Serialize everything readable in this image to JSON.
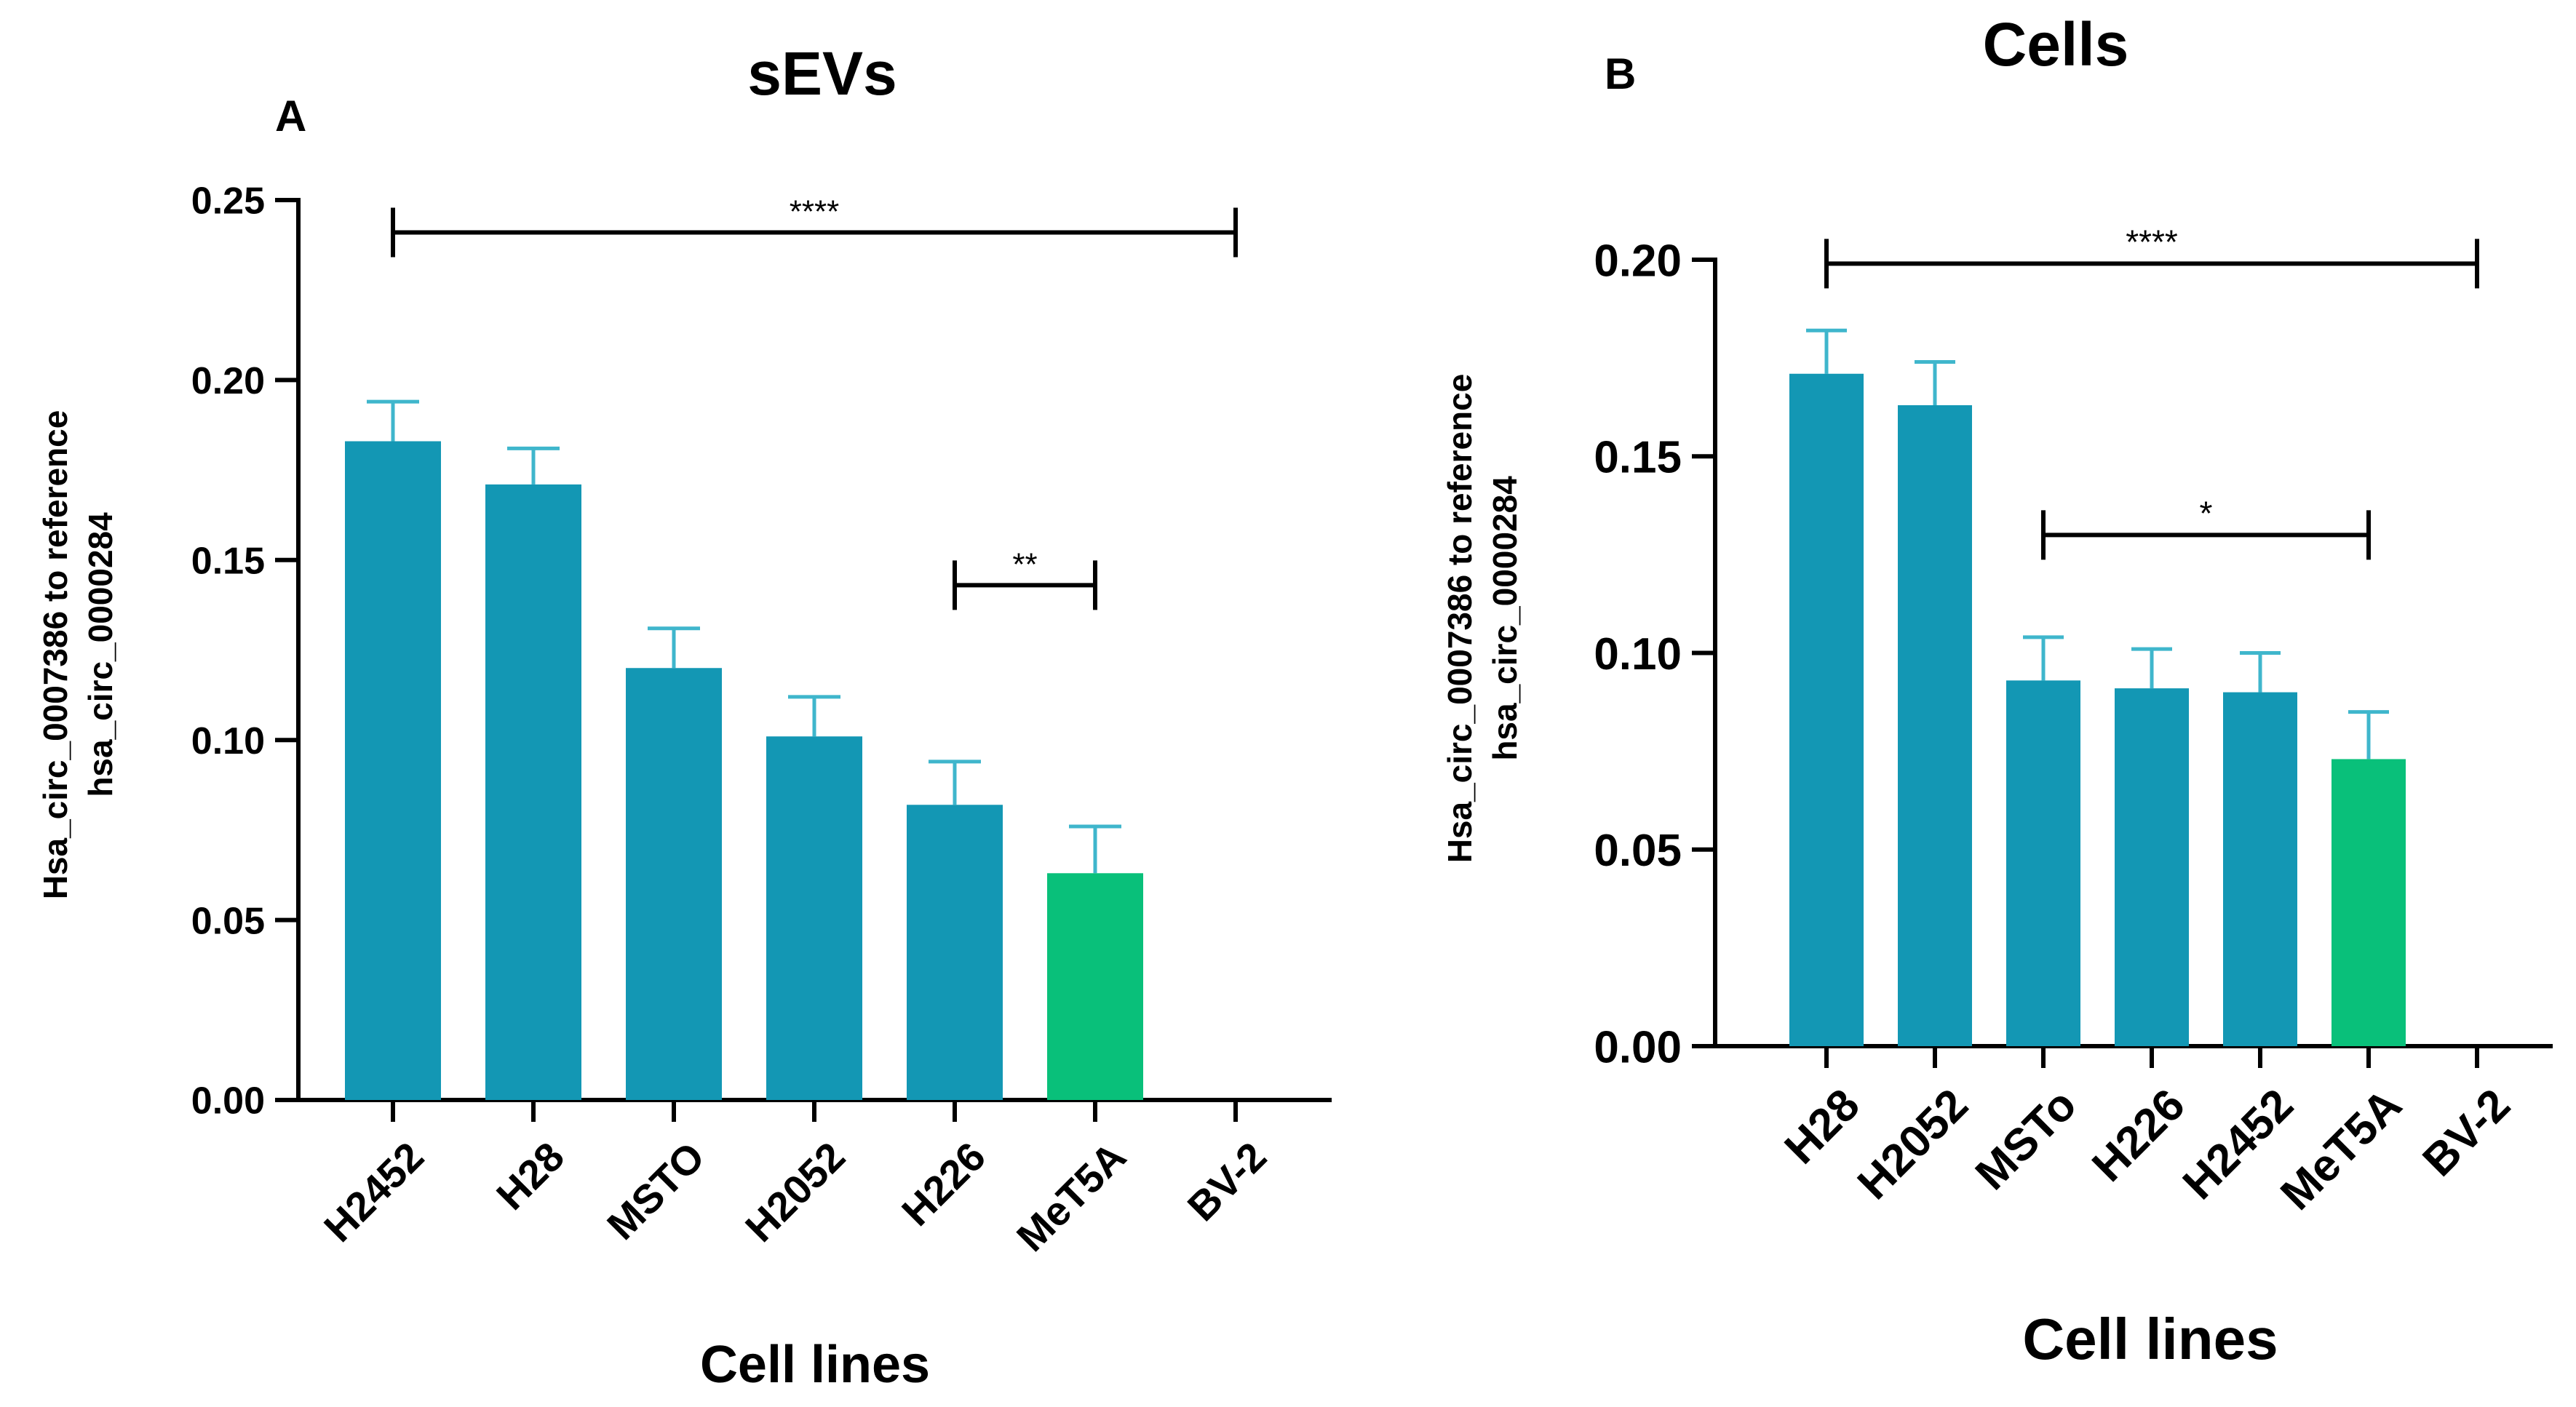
{
  "colors": {
    "bar": "#1397b4",
    "bar_highlight": "#09c07a",
    "error_bar": "#3fb6cc",
    "axis": "#000000"
  },
  "chart_data": [
    {
      "panel_label": "A",
      "type": "bar",
      "title": "sEVs",
      "xlabel": "Cell lines",
      "ylabel_line1": "Hsa_circ_0007386 to reference",
      "ylabel_line2": "hsa_circ_0000284",
      "ylim": [
        0,
        0.25
      ],
      "yticks": [
        "0.00",
        "0.05",
        "0.10",
        "0.15",
        "0.20",
        "0.25"
      ],
      "categories": [
        "H2452",
        "H28",
        "MSTO",
        "H2052",
        "H226",
        "MeT5A",
        "BV-2"
      ],
      "values": [
        0.183,
        0.171,
        0.12,
        0.101,
        0.082,
        0.063,
        null
      ],
      "errors": [
        0.011,
        0.01,
        0.011,
        0.011,
        0.012,
        0.013,
        null
      ],
      "highlight": [
        "MeT5A"
      ],
      "significance": [
        {
          "from": "H2452",
          "to": "BV-2",
          "level": 0.241,
          "label": "****"
        },
        {
          "from": "H226",
          "to": "MeT5A",
          "level": 0.143,
          "label": "**"
        }
      ]
    },
    {
      "panel_label": "B",
      "type": "bar",
      "title": "Cells",
      "xlabel": "Cell lines",
      "ylabel_line1": "Hsa_circ_0007386 to reference",
      "ylabel_line2": "hsa_circ_0000284",
      "ylim": [
        0,
        0.2
      ],
      "yticks": [
        "0.00",
        "0.05",
        "0.10",
        "0.15",
        "0.20"
      ],
      "categories": [
        "H28",
        "H2052",
        "MSTo",
        "H226",
        "H2452",
        "MeT5A",
        "BV-2"
      ],
      "values": [
        0.171,
        0.163,
        0.093,
        0.091,
        0.09,
        0.073,
        null
      ],
      "errors": [
        0.011,
        0.011,
        0.011,
        0.01,
        0.01,
        0.012,
        null
      ],
      "highlight": [
        "MeT5A"
      ],
      "significance": [
        {
          "from": "H28",
          "to": "BV-2",
          "level": 0.199,
          "label": "****"
        },
        {
          "from": "MSTo",
          "to": "MeT5A",
          "level": 0.13,
          "label": "*"
        }
      ]
    }
  ]
}
